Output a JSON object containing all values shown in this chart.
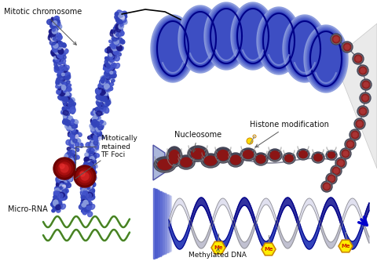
{
  "background_color": "#ffffff",
  "labels": {
    "mitotic_chromosome": "Mitotic chromosome",
    "mitotically_retained": "Mitotically\nretained\nTF Foci",
    "nucleosome": "Nucleosome",
    "histone_modification": "Histone modification",
    "micro_rna": "Micro-RNA",
    "methylated_dna": "Methylated DNA",
    "me_label": "Me"
  },
  "colors": {
    "chr_blue": "#3344bb",
    "chr_blue2": "#4455cc",
    "chr_dark": "#1a1a88",
    "chr_light": "#8899dd",
    "chr_white": "#ccccee",
    "nucleosome_dark": "#5a0a0a",
    "nucleosome_red": "#8b1515",
    "nucleosome_stripe": "#333366",
    "dna_blue": "#1122bb",
    "dna_dark": "#000088",
    "dna_silver": "#bbbbcc",
    "dna_grey": "#999999",
    "bead_dark": "#222244",
    "bead_red": "#882222",
    "micro_rna_green": "#33aa33",
    "micro_rna_olive": "#557722",
    "me_yellow": "#ffee00",
    "me_orange": "#ffaa00",
    "me_red": "#cc2200",
    "text_black": "#111111",
    "ann_line": "#666666",
    "arrow_blue": "#0000cc"
  },
  "figsize": [
    4.8,
    3.33
  ],
  "dpi": 100
}
